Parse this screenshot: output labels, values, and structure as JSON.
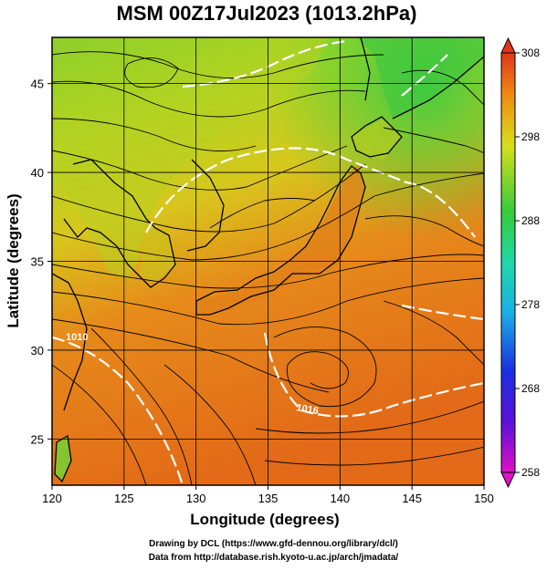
{
  "title": "MSM 00Z17Jul2023 (1013.2hPa)",
  "x_axis": {
    "label": "Longitude (degrees)",
    "range": [
      120,
      150
    ],
    "ticks": [
      120,
      125,
      130,
      135,
      140,
      145,
      150
    ],
    "tick_labels": [
      "120",
      "125",
      "130",
      "135",
      "140",
      "145",
      "150"
    ]
  },
  "y_axis": {
    "label": "Latitude  (degrees)",
    "range": [
      22.4,
      47.6
    ],
    "ticks": [
      25,
      30,
      35,
      40,
      45
    ],
    "tick_labels": [
      "25",
      "30",
      "35",
      "40",
      "45"
    ]
  },
  "colorbar": {
    "min": 258,
    "max": 308,
    "ticks": [
      258,
      268,
      278,
      288,
      298,
      308
    ],
    "tick_labels": [
      "258",
      "268",
      "278",
      "288",
      "298",
      "308"
    ]
  },
  "isobar_labels": [
    "1010",
    "1016"
  ],
  "credits": {
    "line1": "Drawing by DCL (https://www.gfd-dennou.org/library/dcl/)",
    "line2": "Data from http://database.rish.kyoto-u.ac.jp/arch/jmadata/"
  },
  "colors": {
    "warm": "#e06a18",
    "mid": "#d9c21a",
    "cool": "#4fd03a",
    "isobar": "#ffffff"
  }
}
